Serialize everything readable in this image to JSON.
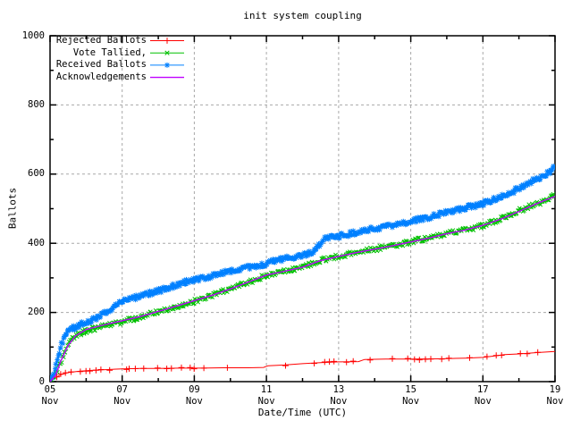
{
  "chart_data": {
    "type": "line",
    "title": "init system coupling",
    "xlabel": "Date/Time (UTC)",
    "ylabel": "Ballots",
    "ylim": [
      0,
      1000
    ],
    "xlim_days": [
      0,
      14
    ],
    "grid": true,
    "legend_position": "top-left",
    "colors": {
      "background": "#ffffff",
      "text": "#000000",
      "grid": "#a8a8a8",
      "border": "#000000"
    },
    "y_major_ticks": [
      0,
      200,
      400,
      600,
      800,
      1000
    ],
    "y_minor_ticks": [
      100,
      300,
      500,
      700,
      900
    ],
    "x_major_ticks": [
      {
        "day": 0,
        "date": "05",
        "month": "Nov"
      },
      {
        "day": 2,
        "date": "07",
        "month": "Nov"
      },
      {
        "day": 4,
        "date": "09",
        "month": "Nov"
      },
      {
        "day": 6,
        "date": "11",
        "month": "Nov"
      },
      {
        "day": 8,
        "date": "13",
        "month": "Nov"
      },
      {
        "day": 10,
        "date": "15",
        "month": "Nov"
      },
      {
        "day": 12,
        "date": "17",
        "month": "Nov"
      },
      {
        "day": 14,
        "date": "19",
        "month": "Nov"
      }
    ],
    "x_minor_days": [
      1,
      3,
      5,
      7,
      9,
      11,
      13
    ],
    "series": [
      {
        "name": "Rejected Ballots",
        "color": "#ff0000",
        "marker": "plus",
        "style": "dense-scatter-line",
        "points": [
          [
            0,
            0
          ],
          [
            0.15,
            12
          ],
          [
            0.3,
            20
          ],
          [
            0.5,
            26
          ],
          [
            0.8,
            30
          ],
          [
            1.2,
            33
          ],
          [
            1.6,
            35
          ],
          [
            2.0,
            37
          ],
          [
            2.5,
            38
          ],
          [
            3.0,
            38
          ],
          [
            3.6,
            39
          ],
          [
            4.2,
            39
          ],
          [
            4.8,
            40
          ],
          [
            5.5,
            40
          ],
          [
            5.92,
            41
          ],
          [
            6.05,
            46
          ],
          [
            6.5,
            48
          ],
          [
            7.0,
            52
          ],
          [
            7.5,
            55
          ],
          [
            8.0,
            57
          ],
          [
            8.55,
            58
          ],
          [
            8.72,
            64
          ],
          [
            9.3,
            65
          ],
          [
            10.0,
            65
          ],
          [
            10.8,
            66
          ],
          [
            11.5,
            68
          ],
          [
            12.0,
            70
          ],
          [
            12.3,
            74
          ],
          [
            12.6,
            78
          ],
          [
            13.0,
            80
          ],
          [
            13.5,
            84
          ],
          [
            14.0,
            87
          ]
        ]
      },
      {
        "name": "Vote Tallied,",
        "color": "#00c000",
        "marker": "cross",
        "style": "dense-scatter-line",
        "points": [
          [
            0,
            0
          ],
          [
            0.1,
            10
          ],
          [
            0.25,
            45
          ],
          [
            0.4,
            85
          ],
          [
            0.55,
            115
          ],
          [
            0.7,
            130
          ],
          [
            0.9,
            142
          ],
          [
            1.1,
            150
          ],
          [
            1.4,
            158
          ],
          [
            1.7,
            166
          ],
          [
            2.0,
            173
          ],
          [
            2.4,
            184
          ],
          [
            2.8,
            196
          ],
          [
            3.2,
            209
          ],
          [
            3.6,
            221
          ],
          [
            4.0,
            232
          ],
          [
            4.4,
            246
          ],
          [
            4.8,
            262
          ],
          [
            5.2,
            276
          ],
          [
            5.6,
            291
          ],
          [
            6.0,
            307
          ],
          [
            6.4,
            316
          ],
          [
            6.8,
            325
          ],
          [
            7.0,
            330
          ],
          [
            7.2,
            338
          ],
          [
            7.5,
            350
          ],
          [
            7.8,
            358
          ],
          [
            8.0,
            362
          ],
          [
            8.4,
            371
          ],
          [
            8.8,
            379
          ],
          [
            9.2,
            387
          ],
          [
            9.6,
            394
          ],
          [
            10.0,
            404
          ],
          [
            10.4,
            414
          ],
          [
            10.8,
            423
          ],
          [
            11.2,
            432
          ],
          [
            11.6,
            441
          ],
          [
            12.0,
            451
          ],
          [
            12.4,
            466
          ],
          [
            12.8,
            484
          ],
          [
            13.2,
            503
          ],
          [
            13.6,
            518
          ],
          [
            14.0,
            537
          ]
        ]
      },
      {
        "name": "Received Ballots",
        "color": "#0080ff",
        "marker": "star",
        "style": "dense-scatter-line",
        "points": [
          [
            0,
            0
          ],
          [
            0.08,
            15
          ],
          [
            0.18,
            55
          ],
          [
            0.3,
            105
          ],
          [
            0.45,
            140
          ],
          [
            0.6,
            152
          ],
          [
            0.8,
            163
          ],
          [
            1.0,
            172
          ],
          [
            1.25,
            182
          ],
          [
            1.5,
            196
          ],
          [
            1.7,
            214
          ],
          [
            1.85,
            226
          ],
          [
            2.0,
            232
          ],
          [
            2.3,
            240
          ],
          [
            2.6,
            250
          ],
          [
            3.0,
            262
          ],
          [
            3.4,
            276
          ],
          [
            3.8,
            289
          ],
          [
            4.2,
            298
          ],
          [
            4.6,
            309
          ],
          [
            5.0,
            320
          ],
          [
            5.4,
            329
          ],
          [
            5.8,
            337
          ],
          [
            6.0,
            341
          ],
          [
            6.2,
            350
          ],
          [
            6.5,
            356
          ],
          [
            6.8,
            359
          ],
          [
            7.0,
            363
          ],
          [
            7.15,
            371
          ],
          [
            7.3,
            373
          ],
          [
            7.45,
            395
          ],
          [
            7.6,
            412
          ],
          [
            7.8,
            418
          ],
          [
            8.0,
            421
          ],
          [
            8.3,
            427
          ],
          [
            8.6,
            434
          ],
          [
            9.0,
            443
          ],
          [
            9.4,
            450
          ],
          [
            9.8,
            457
          ],
          [
            10.2,
            468
          ],
          [
            10.6,
            478
          ],
          [
            11.0,
            490
          ],
          [
            11.4,
            500
          ],
          [
            11.8,
            509
          ],
          [
            12.0,
            515
          ],
          [
            12.4,
            530
          ],
          [
            12.8,
            548
          ],
          [
            13.2,
            570
          ],
          [
            13.6,
            592
          ],
          [
            13.85,
            605
          ],
          [
            14.0,
            622
          ]
        ]
      },
      {
        "name": "Acknowledgements",
        "color": "#c000ff",
        "marker": "none",
        "style": "line",
        "points": [
          [
            0,
            0
          ],
          [
            0.15,
            18
          ],
          [
            0.3,
            60
          ],
          [
            0.5,
            105
          ],
          [
            0.7,
            132
          ],
          [
            1.0,
            151
          ],
          [
            1.5,
            164
          ],
          [
            2.0,
            176
          ],
          [
            2.5,
            188
          ],
          [
            3.0,
            203
          ],
          [
            3.5,
            218
          ],
          [
            4.0,
            234
          ],
          [
            4.5,
            250
          ],
          [
            5.0,
            268
          ],
          [
            5.5,
            288
          ],
          [
            6.0,
            308
          ],
          [
            6.5,
            319
          ],
          [
            7.0,
            331
          ],
          [
            7.5,
            350
          ],
          [
            8.0,
            362
          ],
          [
            8.5,
            373
          ],
          [
            9.0,
            383
          ],
          [
            9.5,
            393
          ],
          [
            10.0,
            404
          ],
          [
            10.5,
            415
          ],
          [
            11.0,
            428
          ],
          [
            11.5,
            438
          ],
          [
            12.0,
            452
          ],
          [
            12.5,
            470
          ],
          [
            13.0,
            492
          ],
          [
            13.5,
            515
          ],
          [
            14.0,
            536
          ]
        ]
      }
    ]
  }
}
